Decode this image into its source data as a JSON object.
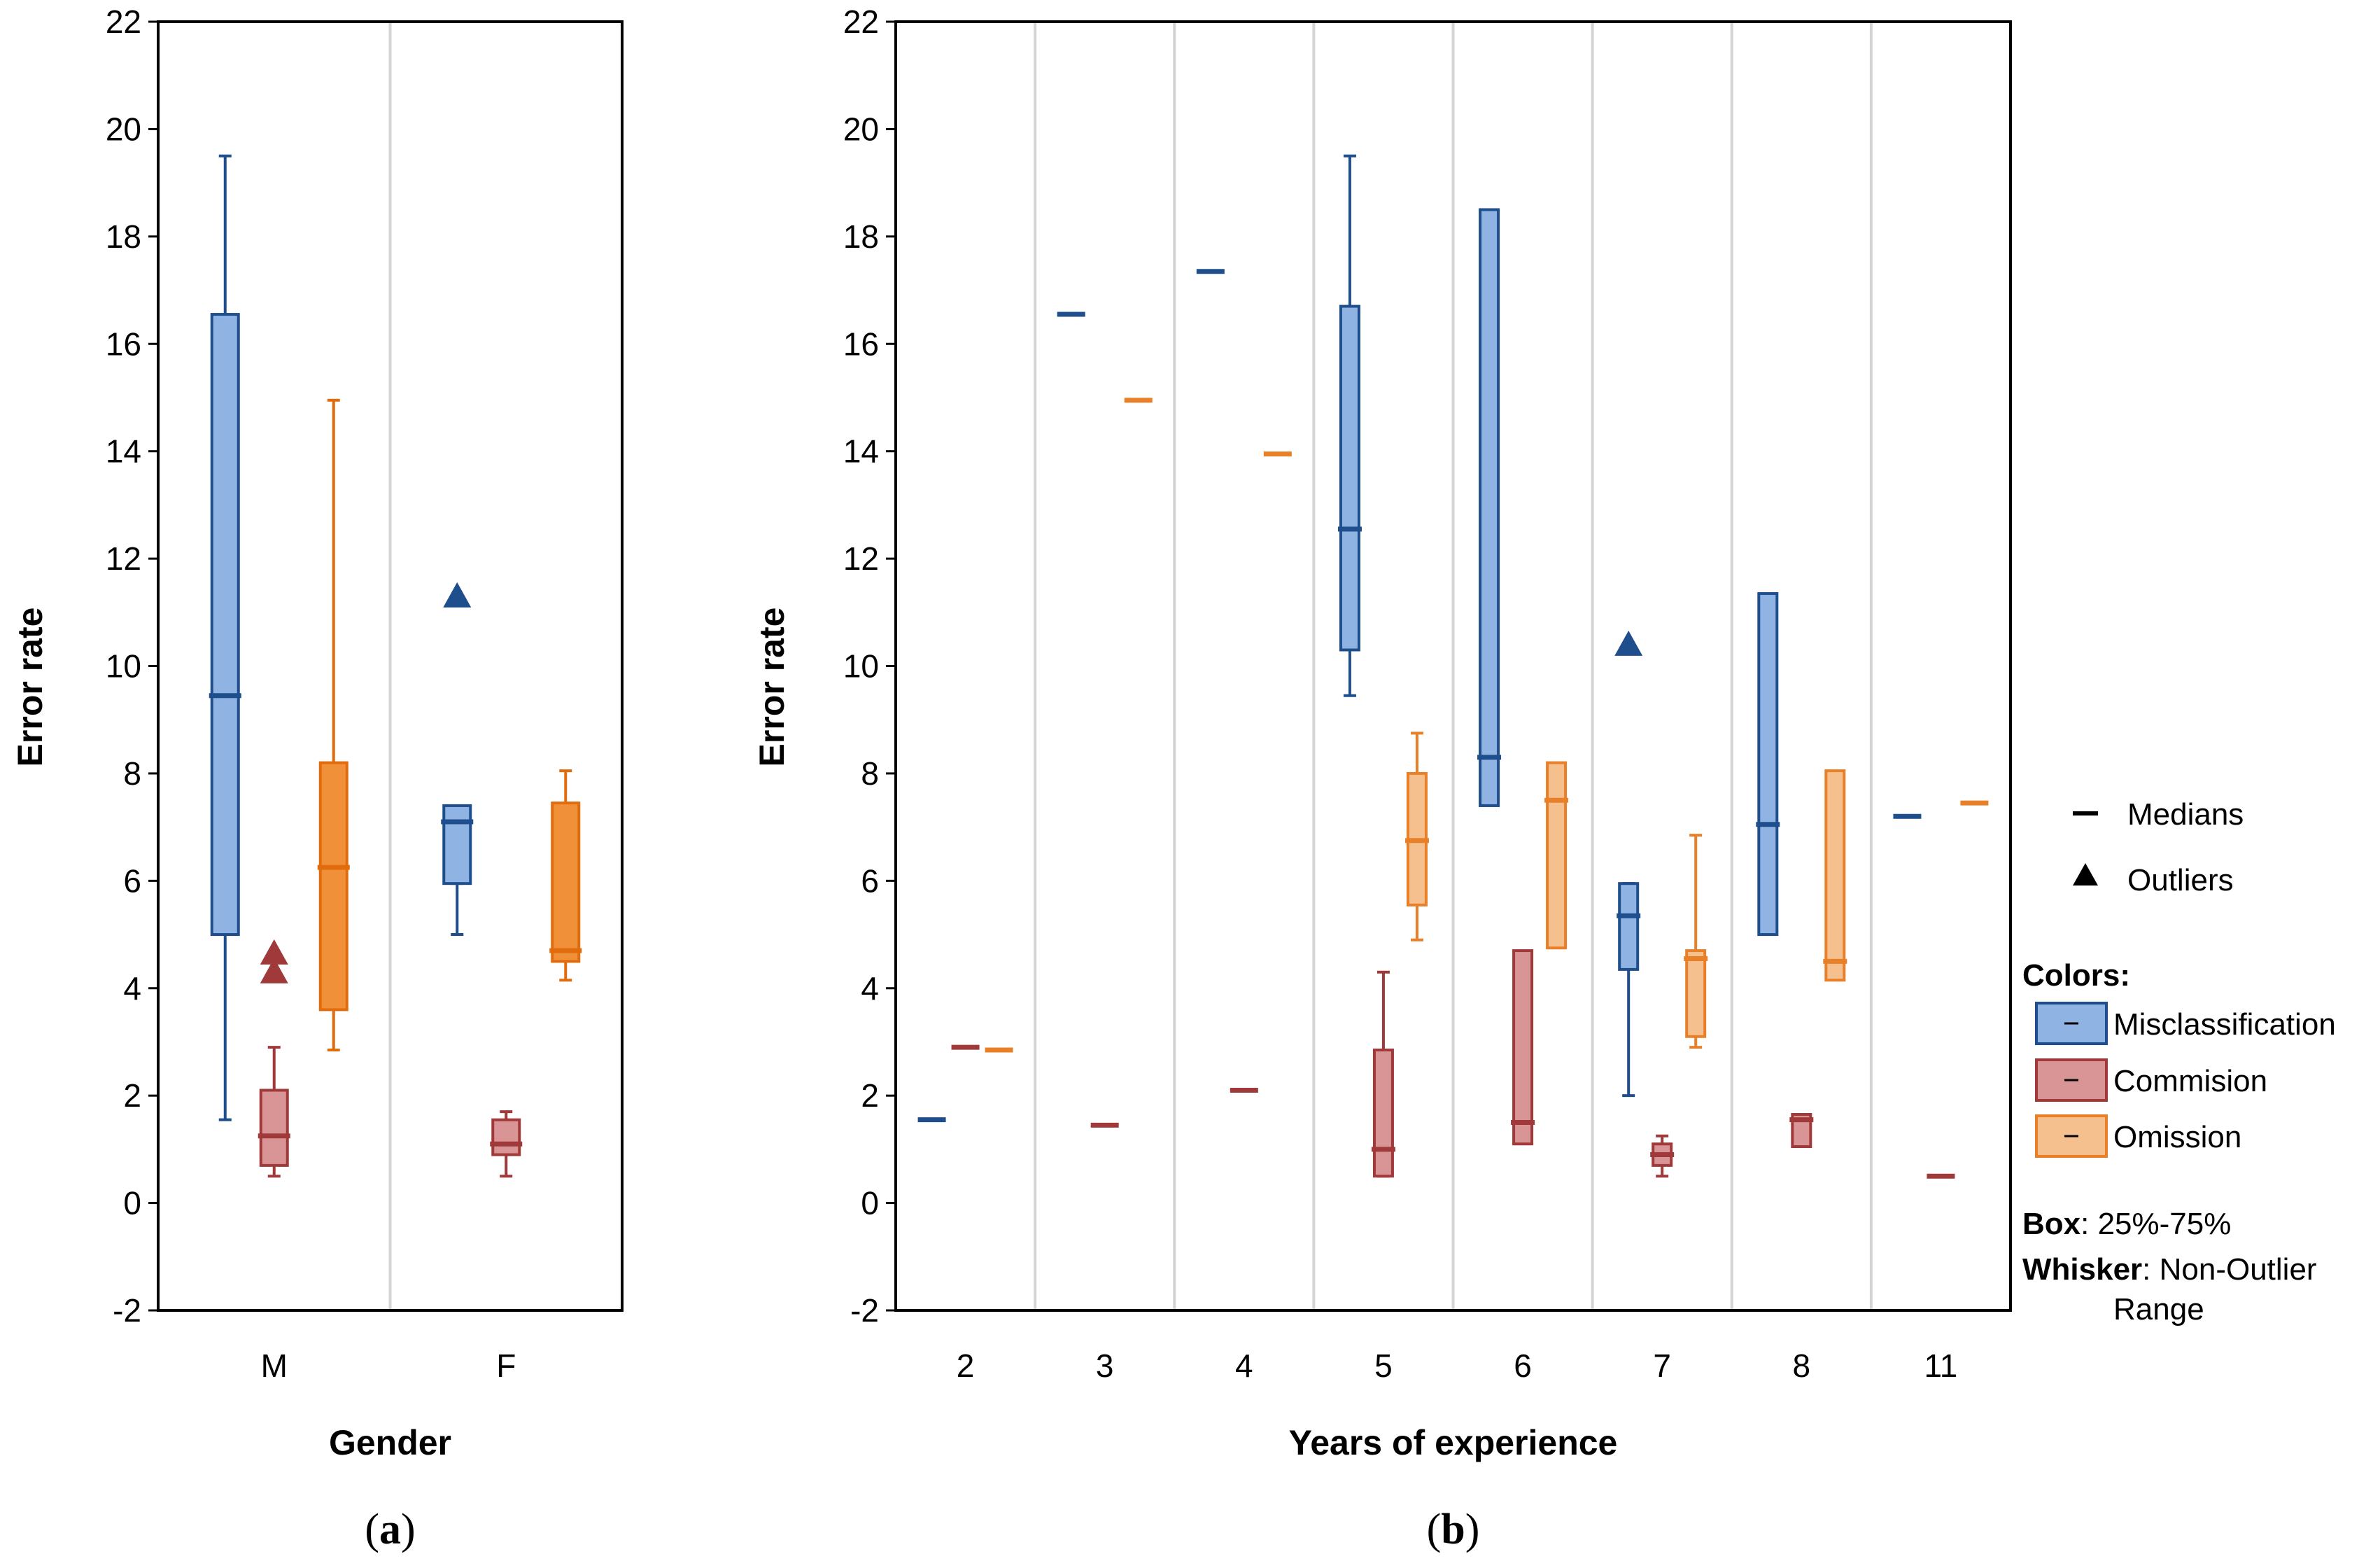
{
  "colors": {
    "misclassification": {
      "fill": "#8FB4E3",
      "stroke": "#1F4E8C"
    },
    "commision": {
      "fill": "#D99595",
      "stroke": "#A03A3A"
    },
    "omission_a": {
      "fill": "#F0913A",
      "stroke": "#E06C0E"
    },
    "omission_b": {
      "fill": "#F6C08E",
      "stroke": "#E8802A"
    },
    "grid": "#D4D4D4"
  },
  "legend": {
    "medians": "Medians",
    "outliers": "Outliers",
    "colors_title": "Colors:",
    "items": [
      "Misclassification",
      "Commision",
      "Omission"
    ],
    "box_label": "Box",
    "box_text": ": 25%-75%",
    "whisker_label": "Whisker",
    "whisker_text": ": Non-Outlier",
    "whisker_text2": "Range"
  },
  "chart_data": [
    {
      "type": "box",
      "panel_label": "(a)",
      "title": "",
      "xlabel": "Gender",
      "ylabel": "Error rate",
      "ylim": [
        -2,
        22
      ],
      "yticks": [
        -2,
        0,
        2,
        4,
        6,
        8,
        10,
        12,
        14,
        16,
        18,
        20,
        22
      ],
      "categories": [
        "M",
        "F"
      ],
      "series": [
        {
          "name": "Misclassification",
          "boxes": [
            {
              "category": "M",
              "q1": 5.0,
              "median": 9.45,
              "q3": 16.55,
              "wmin": 1.55,
              "wmax": 19.5,
              "outliers": []
            },
            {
              "category": "F",
              "q1": 5.95,
              "median": 7.1,
              "q3": 7.4,
              "wmin": 5.0,
              "wmax": 5.95,
              "outliers": [
                11.3
              ]
            }
          ]
        },
        {
          "name": "Commision",
          "boxes": [
            {
              "category": "M",
              "q1": 0.7,
              "median": 1.25,
              "q3": 2.1,
              "wmin": 0.5,
              "wmax": 2.9,
              "outliers": [
                4.3,
                4.65
              ]
            },
            {
              "category": "F",
              "q1": 0.9,
              "median": 1.1,
              "q3": 1.55,
              "wmin": 0.5,
              "wmax": 1.7,
              "outliers": []
            }
          ]
        },
        {
          "name": "Omission",
          "boxes": [
            {
              "category": "M",
              "q1": 3.6,
              "median": 6.25,
              "q3": 8.2,
              "wmin": 2.85,
              "wmax": 14.95,
              "outliers": []
            },
            {
              "category": "F",
              "q1": 4.5,
              "median": 4.7,
              "q3": 7.45,
              "wmin": 4.15,
              "wmax": 8.05,
              "outliers": []
            }
          ]
        }
      ]
    },
    {
      "type": "box",
      "panel_label": "(b)",
      "title": "",
      "xlabel": "Years of experience",
      "ylabel": "Error rate",
      "ylim": [
        -2,
        22
      ],
      "yticks": [
        -2,
        0,
        2,
        4,
        6,
        8,
        10,
        12,
        14,
        16,
        18,
        20,
        22
      ],
      "categories": [
        "2",
        "3",
        "4",
        "5",
        "6",
        "7",
        "8",
        "11"
      ],
      "series": [
        {
          "name": "Misclassification",
          "boxes": [
            {
              "category": "2",
              "median": 1.55
            },
            {
              "category": "3",
              "median": 16.55
            },
            {
              "category": "4",
              "median": 17.35
            },
            {
              "category": "5",
              "q1": 10.3,
              "median": 12.55,
              "q3": 16.7,
              "wmin": 9.45,
              "wmax": 19.5,
              "outliers": []
            },
            {
              "category": "6",
              "q1": 7.4,
              "median": 8.3,
              "q3": 18.5,
              "outliers": []
            },
            {
              "category": "7",
              "q1": 4.35,
              "median": 5.35,
              "q3": 5.95,
              "wmin": 2.0,
              "wmax": 5.95,
              "outliers": [
                10.4
              ]
            },
            {
              "category": "8",
              "q1": 5.0,
              "median": 7.05,
              "q3": 11.35,
              "outliers": []
            },
            {
              "category": "11",
              "median": 7.2
            }
          ]
        },
        {
          "name": "Commision",
          "boxes": [
            {
              "category": "2",
              "median": 2.9
            },
            {
              "category": "3",
              "median": 1.45
            },
            {
              "category": "4",
              "median": 2.1
            },
            {
              "category": "5",
              "q1": 0.5,
              "median": 1.0,
              "q3": 2.85,
              "wmin": 0.5,
              "wmax": 4.3,
              "outliers": []
            },
            {
              "category": "6",
              "q1": 1.1,
              "median": 1.5,
              "q3": 4.7,
              "outliers": []
            },
            {
              "category": "7",
              "q1": 0.7,
              "median": 0.9,
              "q3": 1.1,
              "wmin": 0.5,
              "wmax": 1.25,
              "outliers": []
            },
            {
              "category": "8",
              "q1": 1.05,
              "median": 1.55,
              "q3": 1.65,
              "outliers": []
            },
            {
              "category": "11",
              "median": 0.5
            }
          ]
        },
        {
          "name": "Omission",
          "boxes": [
            {
              "category": "2",
              "median": 2.85
            },
            {
              "category": "3",
              "median": 14.95
            },
            {
              "category": "4",
              "median": 13.95
            },
            {
              "category": "5",
              "q1": 5.55,
              "median": 6.75,
              "q3": 8.0,
              "wmin": 4.9,
              "wmax": 8.75,
              "outliers": []
            },
            {
              "category": "6",
              "q1": 4.75,
              "median": 7.5,
              "q3": 8.2,
              "outliers": []
            },
            {
              "category": "7",
              "q1": 3.1,
              "median": 4.55,
              "q3": 4.7,
              "wmin": 2.9,
              "wmax": 6.85,
              "outliers": []
            },
            {
              "category": "8",
              "q1": 4.15,
              "median": 4.5,
              "q3": 8.05,
              "outliers": []
            },
            {
              "category": "11",
              "median": 7.45
            }
          ]
        }
      ]
    }
  ]
}
